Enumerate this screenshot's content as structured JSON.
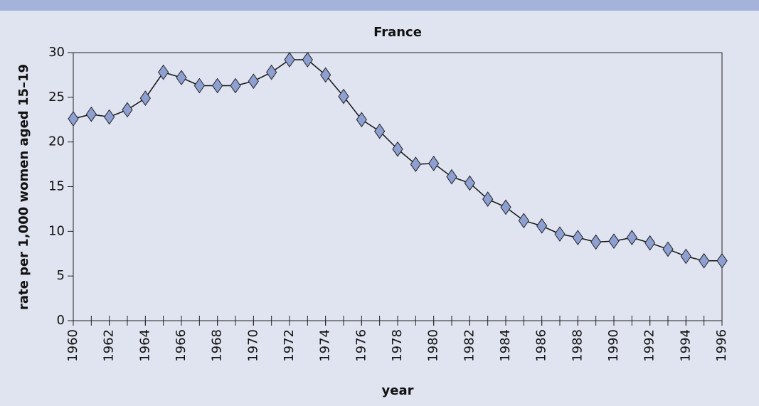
{
  "chart_data": {
    "type": "line",
    "title": "France",
    "xlabel": "year",
    "ylabel": "rate per 1,000 women aged 15–19",
    "x": [
      1960,
      1961,
      1962,
      1963,
      1964,
      1965,
      1966,
      1967,
      1968,
      1969,
      1970,
      1971,
      1972,
      1973,
      1974,
      1975,
      1976,
      1977,
      1978,
      1979,
      1980,
      1981,
      1982,
      1983,
      1984,
      1985,
      1986,
      1987,
      1988,
      1989,
      1990,
      1991,
      1992,
      1993,
      1994,
      1995,
      1996
    ],
    "series": [
      {
        "name": "France",
        "color": "#8e9fd2",
        "values": [
          22.6,
          23.1,
          22.8,
          23.6,
          24.9,
          27.8,
          27.2,
          26.3,
          26.3,
          26.3,
          26.8,
          27.8,
          29.2,
          29.2,
          27.5,
          25.1,
          22.5,
          21.2,
          19.2,
          17.5,
          17.6,
          16.1,
          15.4,
          13.6,
          12.7,
          11.2,
          10.6,
          9.7,
          9.3,
          8.8,
          8.9,
          9.3,
          8.7,
          8.0,
          7.2,
          6.7,
          6.7
        ]
      }
    ],
    "xlim": [
      1960,
      1996
    ],
    "xticks": [
      1960,
      1962,
      1964,
      1966,
      1968,
      1970,
      1972,
      1974,
      1976,
      1978,
      1980,
      1982,
      1984,
      1986,
      1988,
      1990,
      1992,
      1994,
      1996
    ],
    "ylim": [
      0,
      30
    ],
    "yticks": [
      0,
      5,
      10,
      15,
      20,
      25,
      30
    ]
  }
}
